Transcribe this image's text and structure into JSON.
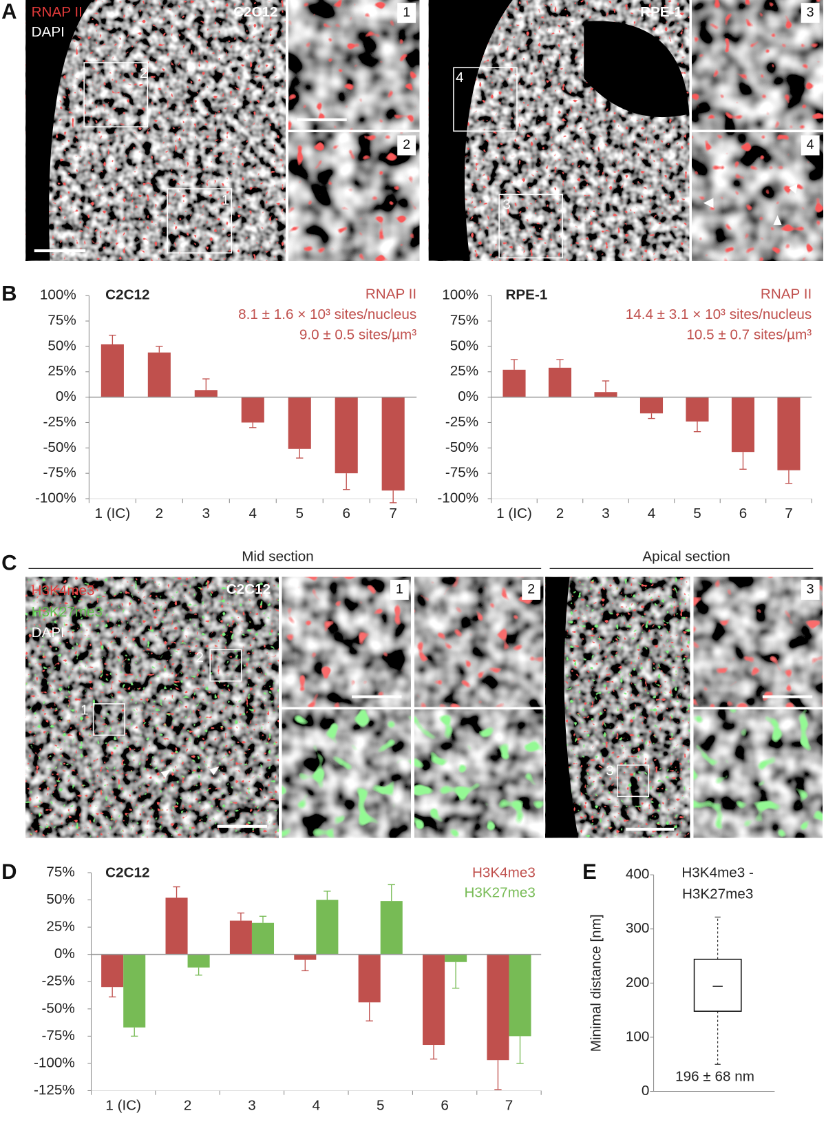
{
  "panel_labels": [
    "A",
    "B",
    "C",
    "D",
    "E"
  ],
  "panel_a": {
    "legend": [
      "RNAP II",
      "DAPI"
    ],
    "left_cell": "C2C12",
    "right_cell": "RPE-1",
    "roi_labels": [
      "1",
      "2",
      "3",
      "4"
    ]
  },
  "panel_c": {
    "sections": [
      "Mid section",
      "Apical section"
    ],
    "legend": [
      "H3K4me3",
      "H3K27me3",
      "DAPI"
    ],
    "cell": "C2C12",
    "roi_labels": [
      "1",
      "2",
      "3"
    ]
  },
  "chart_data": [
    {
      "type": "bar",
      "title": "C2C12",
      "categories": [
        "1 (IC)",
        "2",
        "3",
        "4",
        "5",
        "6",
        "7"
      ],
      "series": [
        {
          "name": "RNAP II",
          "color": "#c0504d",
          "values": [
            52,
            44,
            7,
            -25,
            -51,
            -75,
            -92
          ],
          "errors": [
            9,
            6,
            11,
            5,
            9,
            16,
            12
          ]
        }
      ],
      "annotations": [
        "8.1 ± 1.6 × 10³ sites/nucleus",
        "9.0 ± 0.5 sites/µm³"
      ],
      "ylim": [
        -100,
        100
      ],
      "yticks": [
        {
          "value": 100,
          "label": "100%"
        },
        {
          "value": 75,
          "label": "75%"
        },
        {
          "value": 50,
          "label": "50%"
        },
        {
          "value": 25,
          "label": "25%"
        },
        {
          "value": 0,
          "label": "0%"
        },
        {
          "value": -25,
          "label": "-25%"
        },
        {
          "value": -50,
          "label": "-50%"
        },
        {
          "value": -75,
          "label": "-75%"
        },
        {
          "value": -100,
          "label": "-100%"
        }
      ]
    },
    {
      "type": "bar",
      "title": "RPE-1",
      "categories": [
        "1 (IC)",
        "2",
        "3",
        "4",
        "5",
        "6",
        "7"
      ],
      "series": [
        {
          "name": "RNAP II",
          "color": "#c0504d",
          "values": [
            27,
            29,
            5,
            -16,
            -24,
            -54,
            -72
          ],
          "errors": [
            10,
            8,
            11,
            5,
            10,
            17,
            13
          ]
        }
      ],
      "annotations": [
        "14.4 ± 3.1 × 10³ sites/nucleus",
        "10.5 ± 0.7 sites/µm³"
      ],
      "ylim": [
        -100,
        100
      ],
      "yticks": [
        {
          "value": 100,
          "label": "100%"
        },
        {
          "value": 75,
          "label": "75%"
        },
        {
          "value": 50,
          "label": "50%"
        },
        {
          "value": 25,
          "label": "25%"
        },
        {
          "value": 0,
          "label": "0%"
        },
        {
          "value": -25,
          "label": "-25%"
        },
        {
          "value": -50,
          "label": "-50%"
        },
        {
          "value": -75,
          "label": "-75%"
        },
        {
          "value": -100,
          "label": "-100%"
        }
      ]
    },
    {
      "type": "bar",
      "title": "C2C12",
      "categories": [
        "1 (IC)",
        "2",
        "3",
        "4",
        "5",
        "6",
        "7"
      ],
      "series": [
        {
          "name": "H3K4me3",
          "color": "#c0504d",
          "values": [
            -30,
            52,
            31,
            -5,
            -44,
            -83,
            -97
          ],
          "errors": [
            9,
            10,
            7,
            10,
            17,
            13,
            27
          ]
        },
        {
          "name": "H3K27me3",
          "color": "#77bb55",
          "values": [
            -67,
            -12,
            29,
            50,
            49,
            -7,
            -75
          ],
          "errors": [
            8,
            7,
            6,
            8,
            15,
            24,
            25
          ]
        }
      ],
      "ylim": [
        -125,
        75
      ],
      "yticks": [
        {
          "value": 75,
          "label": "75%"
        },
        {
          "value": 50,
          "label": "50%"
        },
        {
          "value": 25,
          "label": "25%"
        },
        {
          "value": 0,
          "label": "0%"
        },
        {
          "value": -25,
          "label": "-25%"
        },
        {
          "value": -50,
          "label": "-50%"
        },
        {
          "value": -75,
          "label": "-75%"
        },
        {
          "value": -100,
          "label": "-100%"
        },
        {
          "value": -125,
          "label": "-125%"
        }
      ]
    },
    {
      "type": "box",
      "title_lines": [
        "H3K4me3 -",
        "H3K27me3"
      ],
      "ylabel": "Minimal distance [nm]",
      "box": {
        "whisker_low": 50,
        "q1": 148,
        "median": 194,
        "q3": 244,
        "whisker_high": 322
      },
      "annotation": "196 ± 68 nm",
      "ylim": [
        0,
        400
      ],
      "yticks": [
        0,
        100,
        200,
        300,
        400
      ]
    }
  ]
}
